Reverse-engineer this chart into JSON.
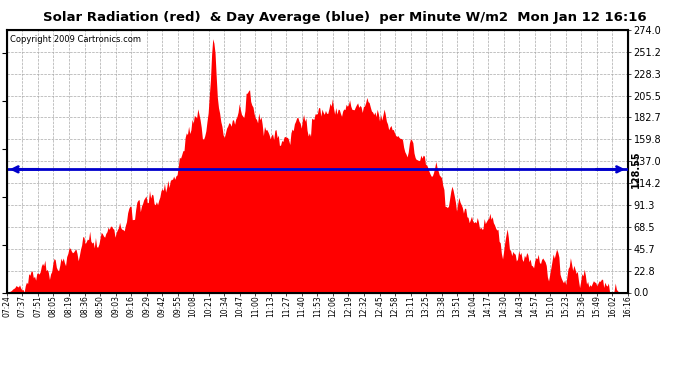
{
  "title": "Solar Radiation (red)  & Day Average (blue)  per Minute W/m2  Mon Jan 12 16:16",
  "copyright": "Copyright 2009 Cartronics.com",
  "avg_value": 128.55,
  "ymax": 274.0,
  "ymin": 0.0,
  "yticks": [
    0.0,
    22.8,
    45.7,
    68.5,
    91.3,
    114.2,
    137.0,
    159.8,
    182.7,
    205.5,
    228.3,
    251.2,
    274.0
  ],
  "xtick_labels": [
    "07:24",
    "07:37",
    "07:51",
    "08:05",
    "08:19",
    "08:36",
    "08:50",
    "09:03",
    "09:16",
    "09:29",
    "09:42",
    "09:55",
    "10:08",
    "10:21",
    "10:34",
    "10:47",
    "11:00",
    "11:13",
    "11:27",
    "11:40",
    "11:53",
    "12:06",
    "12:19",
    "12:32",
    "12:45",
    "12:58",
    "13:11",
    "13:25",
    "13:38",
    "13:51",
    "14:04",
    "14:17",
    "14:30",
    "14:43",
    "14:57",
    "15:10",
    "15:23",
    "15:36",
    "15:49",
    "16:02",
    "16:16"
  ],
  "fill_color": "#ff0000",
  "line_color": "#0000cc",
  "grid_color": "#aaaaaa",
  "background_color": "#ffffff"
}
